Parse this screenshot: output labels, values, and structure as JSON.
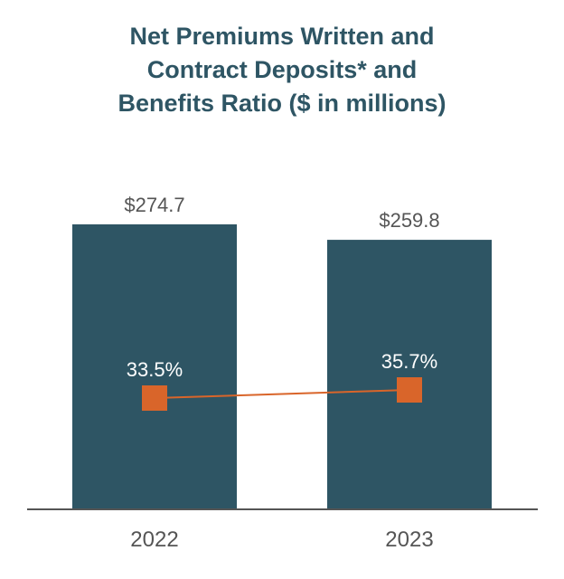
{
  "chart_data": {
    "type": "bar",
    "title_lines": [
      "Net Premiums Written and",
      "Contract Deposits* and",
      "Benefits Ratio ($ in millions)"
    ],
    "categories": [
      "2022",
      "2023"
    ],
    "series": [
      {
        "name": "Net Premiums Written and Contract Deposits",
        "type": "bar",
        "values": [
          274.7,
          259.8
        ],
        "labels": [
          "$274.7",
          "$259.8"
        ]
      },
      {
        "name": "Benefits Ratio",
        "type": "line",
        "values": [
          33.5,
          35.7
        ],
        "labels": [
          "33.5%",
          "35.7%"
        ]
      }
    ],
    "ylim_bars": [
      0,
      290
    ],
    "ylim_ratio": [
      0,
      100
    ],
    "colors": {
      "bar": "#2e5564",
      "line": "#d9652a",
      "title": "#2e5564",
      "label": "#555555",
      "axis": "#555555",
      "ratio_label": "#ffffff"
    }
  }
}
